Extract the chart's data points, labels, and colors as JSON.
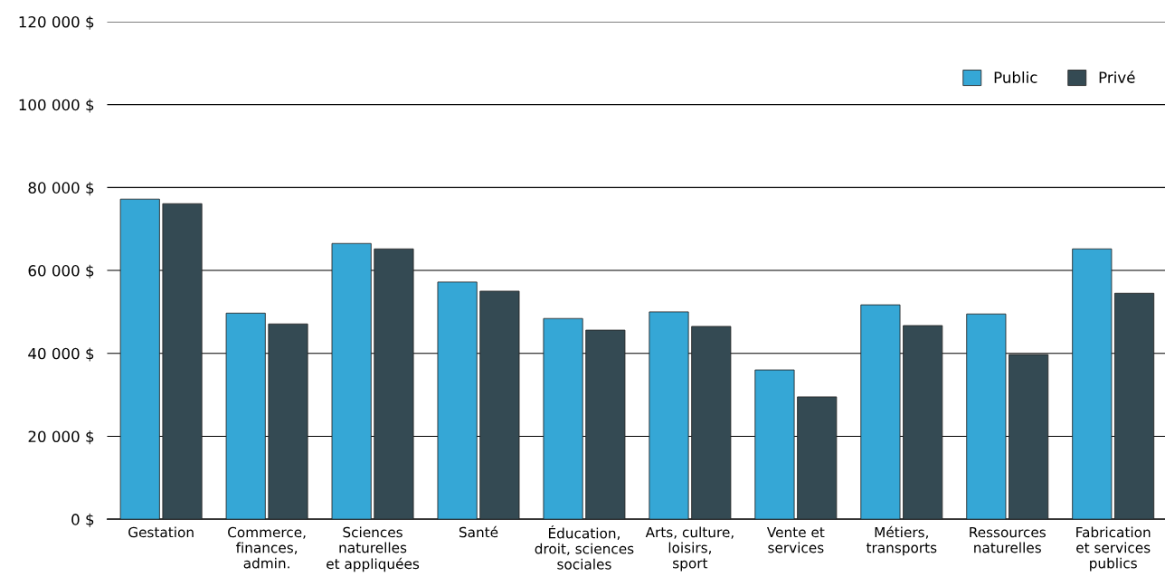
{
  "chart_data": {
    "type": "bar",
    "categories": [
      "Gestation",
      "Commerce,\nfinances,\nadmin.",
      "Sciences\nnaturelles\net appliquées",
      "Santé",
      "Éducation,\ndroit, sciences\nsociales",
      "Arts, culture,\nloisirs,\nsport",
      "Vente et\nservices",
      "Métiers,\ntransports",
      "Ressources\nnaturelles",
      "Fabrication\net services\npublics"
    ],
    "series": [
      {
        "name": "Public",
        "color": "#35a7d6",
        "values": [
          77200,
          49700,
          66500,
          57200,
          48400,
          50000,
          36000,
          51700,
          49500,
          65200
        ]
      },
      {
        "name": "Privé",
        "color": "#344a53",
        "values": [
          76100,
          47100,
          65200,
          55000,
          45600,
          46500,
          29500,
          46700,
          39700,
          54500
        ]
      }
    ],
    "ylim": [
      0,
      120000
    ],
    "yticks": [
      {
        "value": 0,
        "label": "0 $"
      },
      {
        "value": 20000,
        "label": "20 000 $"
      },
      {
        "value": 40000,
        "label": "40 000 $"
      },
      {
        "value": 60000,
        "label": "60 000 $"
      },
      {
        "value": 80000,
        "label": "80 000 $"
      },
      {
        "value": 100000,
        "label": "100 000 $"
      },
      {
        "value": 120000,
        "label": "120 000 $"
      }
    ],
    "grid": "y",
    "legend": "top right"
  }
}
